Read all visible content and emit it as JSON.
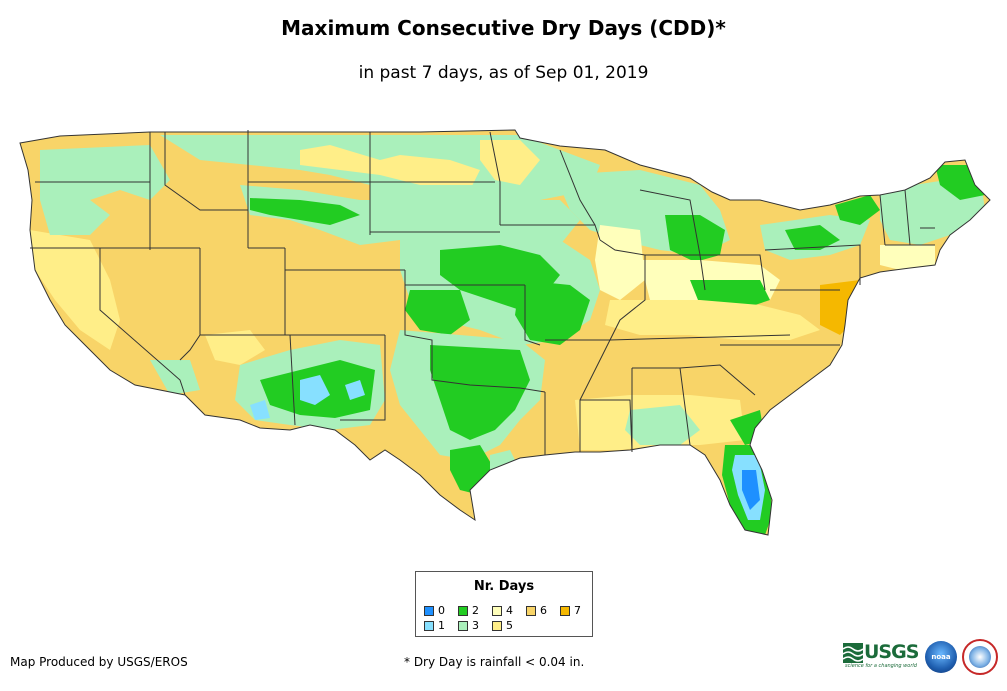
{
  "title": "Maximum Consecutive Dry Days (CDD)*",
  "subtitle": "in past 7 days, as of Sep 01, 2019",
  "legend": {
    "title": "Nr. Days",
    "items": [
      {
        "label": "0",
        "color": "#1e90ff"
      },
      {
        "label": "1",
        "color": "#87e0ff"
      },
      {
        "label": "2",
        "color": "#22cc22"
      },
      {
        "label": "3",
        "color": "#aaf0bb"
      },
      {
        "label": "4",
        "color": "#ffffbb"
      },
      {
        "label": "5",
        "color": "#ffee88"
      },
      {
        "label": "6",
        "color": "#f8d468"
      },
      {
        "label": "7",
        "color": "#f5b800"
      }
    ]
  },
  "credit": "Map Produced by USGS/EROS",
  "footnote": "* Dry Day is rainfall < 0.04 in.",
  "logos": {
    "usgs": "USGS",
    "usgs_tagline": "science for a changing world",
    "noaa": "noaa"
  },
  "colors": {
    "state_border": "#333333",
    "dry7": "#f5b800",
    "dry6": "#f8d468",
    "dry5": "#ffee88",
    "dry4": "#ffffbb",
    "dry3": "#aaf0bb",
    "dry2": "#22cc22",
    "dry1": "#87e0ff",
    "dry0": "#1e90ff"
  }
}
